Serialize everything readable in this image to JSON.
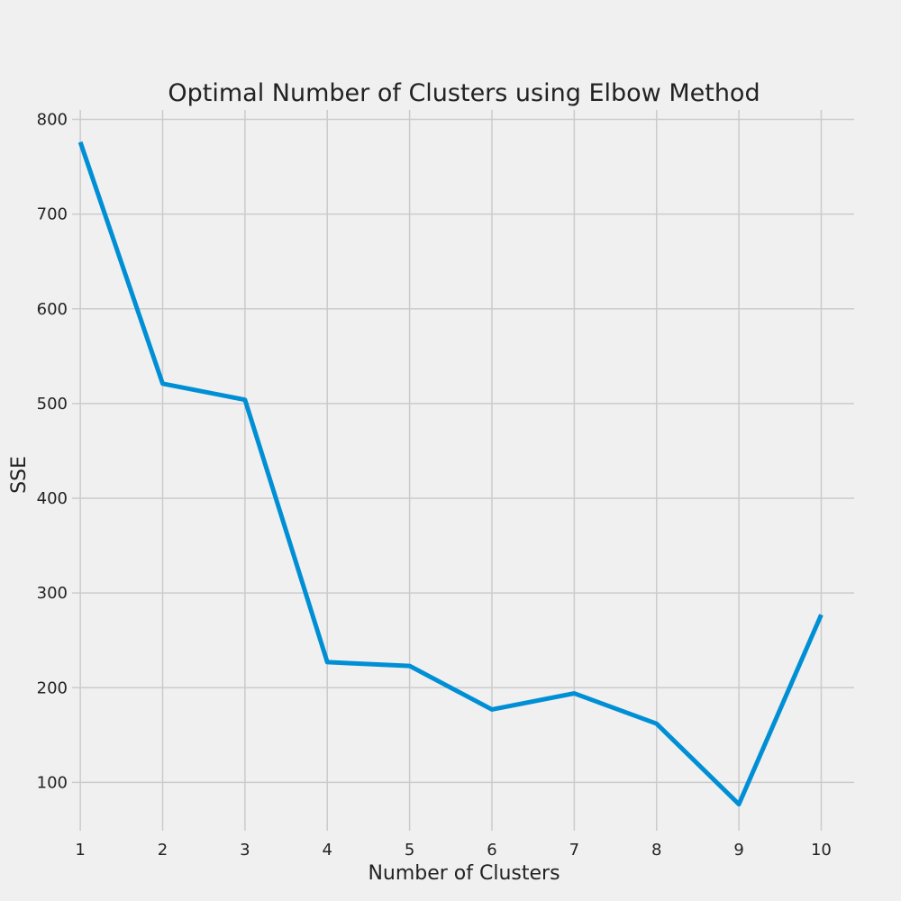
{
  "chart_data": {
    "type": "line",
    "title": "Optimal Number of Clusters using Elbow Method",
    "xlabel": "Number of Clusters",
    "ylabel": "SSE",
    "x": [
      1,
      2,
      3,
      4,
      5,
      6,
      7,
      8,
      9,
      10
    ],
    "series": [
      {
        "values": [
          776,
          521,
          504,
          227,
          223,
          177,
          194,
          162,
          77,
          277
        ],
        "color": "#008fd5"
      }
    ],
    "xticks": [
      1,
      2,
      3,
      4,
      5,
      6,
      7,
      8,
      9,
      10
    ],
    "yticks": [
      100,
      200,
      300,
      400,
      500,
      600,
      700,
      800
    ],
    "xlim": [
      0.9,
      10.4
    ],
    "ylim": [
      49,
      810
    ],
    "grid": true,
    "legend": "none",
    "colors": {
      "background": "#f0f0f0",
      "grid": "#cbcbcb",
      "text": "#222222"
    }
  }
}
